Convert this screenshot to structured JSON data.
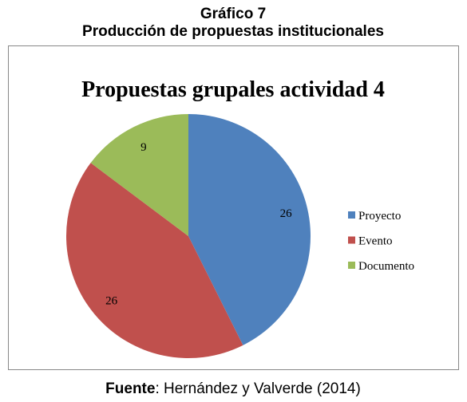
{
  "header": {
    "number": "Gráfico 7",
    "title": "Producción de propuestas institucionales"
  },
  "chart_data": {
    "type": "pie",
    "title": "Propuestas grupales actividad 4",
    "categories": [
      "Proyecto",
      "Evento",
      "Documento"
    ],
    "values": [
      26,
      26,
      9
    ],
    "colors": [
      "#4f81bd",
      "#c0504d",
      "#9bbb59"
    ],
    "legend": "right"
  },
  "source": {
    "label": "Fuente",
    "text": ": Hernández y Valverde (2014)"
  }
}
